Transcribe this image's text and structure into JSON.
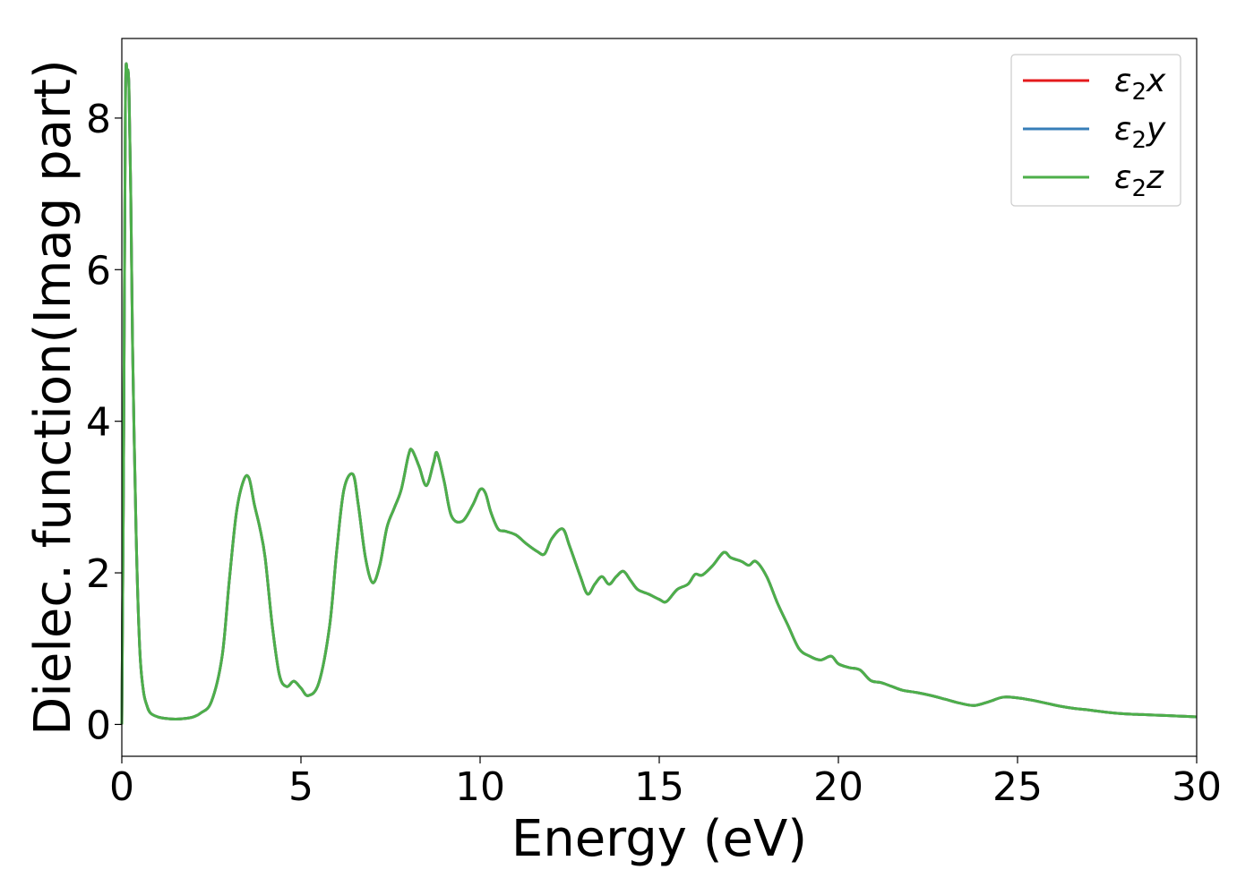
{
  "chart_data": {
    "type": "line",
    "title": "",
    "xlabel": "Energy (eV)",
    "ylabel": "Dielec. function(Imag part)",
    "xlim": [
      0,
      30
    ],
    "ylim": [
      -0.42,
      9.05
    ],
    "xticks": [
      0,
      5,
      10,
      15,
      20,
      25,
      30
    ],
    "yticks": [
      0,
      2,
      4,
      6,
      8
    ],
    "grid": false,
    "legend_position": "top-right",
    "x": [
      0,
      0.05,
      0.1,
      0.15,
      0.2,
      0.25,
      0.3,
      0.4,
      0.5,
      0.6,
      0.7,
      0.8,
      1.0,
      1.2,
      1.5,
      1.8,
      2.0,
      2.2,
      2.5,
      2.8,
      3.0,
      3.2,
      3.4,
      3.55,
      3.7,
      3.85,
      4.0,
      4.2,
      4.4,
      4.6,
      4.8,
      5.0,
      5.2,
      5.5,
      5.8,
      6.0,
      6.2,
      6.45,
      6.6,
      6.8,
      7.0,
      7.2,
      7.4,
      7.6,
      7.8,
      8.0,
      8.1,
      8.3,
      8.5,
      8.7,
      8.8,
      9.0,
      9.2,
      9.5,
      9.8,
      10.0,
      10.15,
      10.3,
      10.5,
      10.7,
      11.0,
      11.3,
      11.6,
      11.8,
      12.0,
      12.3,
      12.5,
      12.8,
      13.0,
      13.2,
      13.4,
      13.6,
      13.8,
      14.0,
      14.2,
      14.4,
      14.7,
      15.0,
      15.2,
      15.5,
      15.8,
      16.0,
      16.2,
      16.5,
      16.8,
      17.0,
      17.3,
      17.5,
      17.7,
      18.0,
      18.3,
      18.6,
      18.9,
      19.2,
      19.5,
      19.8,
      20.0,
      20.3,
      20.6,
      20.9,
      21.2,
      21.5,
      21.8,
      22.2,
      22.6,
      23.0,
      23.4,
      23.8,
      24.2,
      24.6,
      25.0,
      25.4,
      25.8,
      26.2,
      26.6,
      27.0,
      27.5,
      28.0,
      28.5,
      29.0,
      29.5,
      30.0
    ],
    "series": [
      {
        "name": "ε2x",
        "color": "#e41a1c",
        "values": [
          0.0,
          3.5,
          8.2,
          8.62,
          8.4,
          7.0,
          5.0,
          2.5,
          1.0,
          0.45,
          0.25,
          0.15,
          0.1,
          0.08,
          0.07,
          0.08,
          0.1,
          0.15,
          0.3,
          0.9,
          1.9,
          2.8,
          3.22,
          3.25,
          2.9,
          2.6,
          2.2,
          1.3,
          0.65,
          0.5,
          0.57,
          0.48,
          0.38,
          0.55,
          1.3,
          2.3,
          3.1,
          3.3,
          2.9,
          2.2,
          1.87,
          2.1,
          2.6,
          2.85,
          3.1,
          3.55,
          3.62,
          3.4,
          3.15,
          3.45,
          3.58,
          3.2,
          2.75,
          2.68,
          2.9,
          3.1,
          3.05,
          2.8,
          2.58,
          2.55,
          2.5,
          2.38,
          2.28,
          2.25,
          2.45,
          2.58,
          2.35,
          1.95,
          1.72,
          1.85,
          1.95,
          1.85,
          1.95,
          2.02,
          1.9,
          1.78,
          1.72,
          1.65,
          1.62,
          1.78,
          1.85,
          1.98,
          1.97,
          2.1,
          2.27,
          2.2,
          2.15,
          2.1,
          2.15,
          1.95,
          1.6,
          1.3,
          1.0,
          0.9,
          0.85,
          0.9,
          0.8,
          0.75,
          0.72,
          0.58,
          0.55,
          0.5,
          0.45,
          0.42,
          0.38,
          0.33,
          0.28,
          0.25,
          0.3,
          0.36,
          0.35,
          0.32,
          0.28,
          0.24,
          0.21,
          0.19,
          0.16,
          0.14,
          0.13,
          0.12,
          0.11,
          0.1
        ]
      },
      {
        "name": "ε2y",
        "color": "#377eb8",
        "values": [
          0.0,
          3.5,
          8.2,
          8.62,
          8.4,
          7.0,
          5.0,
          2.5,
          1.0,
          0.45,
          0.25,
          0.15,
          0.1,
          0.08,
          0.07,
          0.08,
          0.1,
          0.15,
          0.3,
          0.9,
          1.9,
          2.8,
          3.22,
          3.25,
          2.9,
          2.6,
          2.2,
          1.3,
          0.65,
          0.5,
          0.57,
          0.48,
          0.38,
          0.55,
          1.3,
          2.3,
          3.1,
          3.3,
          2.9,
          2.2,
          1.87,
          2.1,
          2.6,
          2.85,
          3.1,
          3.55,
          3.62,
          3.4,
          3.15,
          3.45,
          3.58,
          3.2,
          2.75,
          2.68,
          2.9,
          3.1,
          3.05,
          2.8,
          2.58,
          2.55,
          2.5,
          2.38,
          2.28,
          2.25,
          2.45,
          2.58,
          2.35,
          1.95,
          1.72,
          1.85,
          1.95,
          1.85,
          1.95,
          2.02,
          1.9,
          1.78,
          1.72,
          1.65,
          1.62,
          1.78,
          1.85,
          1.98,
          1.97,
          2.1,
          2.27,
          2.2,
          2.15,
          2.1,
          2.15,
          1.95,
          1.6,
          1.3,
          1.0,
          0.9,
          0.85,
          0.9,
          0.8,
          0.75,
          0.72,
          0.58,
          0.55,
          0.5,
          0.45,
          0.42,
          0.38,
          0.33,
          0.28,
          0.25,
          0.3,
          0.36,
          0.35,
          0.32,
          0.28,
          0.24,
          0.21,
          0.19,
          0.16,
          0.14,
          0.13,
          0.12,
          0.11,
          0.1
        ]
      },
      {
        "name": "ε2z",
        "color": "#4daf4a",
        "values": [
          0.0,
          3.5,
          8.2,
          8.62,
          8.4,
          7.0,
          5.0,
          2.5,
          1.0,
          0.45,
          0.25,
          0.15,
          0.1,
          0.08,
          0.07,
          0.08,
          0.1,
          0.15,
          0.3,
          0.9,
          1.9,
          2.8,
          3.22,
          3.25,
          2.9,
          2.6,
          2.2,
          1.3,
          0.65,
          0.5,
          0.57,
          0.48,
          0.38,
          0.55,
          1.3,
          2.3,
          3.1,
          3.3,
          2.9,
          2.2,
          1.87,
          2.1,
          2.6,
          2.85,
          3.1,
          3.55,
          3.62,
          3.4,
          3.15,
          3.45,
          3.58,
          3.2,
          2.75,
          2.68,
          2.9,
          3.1,
          3.05,
          2.8,
          2.58,
          2.55,
          2.5,
          2.38,
          2.28,
          2.25,
          2.45,
          2.58,
          2.35,
          1.95,
          1.72,
          1.85,
          1.95,
          1.85,
          1.95,
          2.02,
          1.9,
          1.78,
          1.72,
          1.65,
          1.62,
          1.78,
          1.85,
          1.98,
          1.97,
          2.1,
          2.27,
          2.2,
          2.15,
          2.1,
          2.15,
          1.95,
          1.6,
          1.3,
          1.0,
          0.9,
          0.85,
          0.9,
          0.8,
          0.75,
          0.72,
          0.58,
          0.55,
          0.5,
          0.45,
          0.42,
          0.38,
          0.33,
          0.28,
          0.25,
          0.3,
          0.36,
          0.35,
          0.32,
          0.28,
          0.24,
          0.21,
          0.19,
          0.16,
          0.14,
          0.13,
          0.12,
          0.11,
          0.1
        ]
      }
    ]
  },
  "legend": {
    "entries": [
      {
        "base": "ε",
        "sub": "2",
        "axis": "x"
      },
      {
        "base": "ε",
        "sub": "2",
        "axis": "y"
      },
      {
        "base": "ε",
        "sub": "2",
        "axis": "z"
      }
    ]
  }
}
